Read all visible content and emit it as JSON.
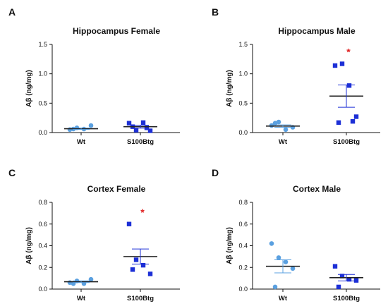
{
  "chart_data": [
    {
      "type": "scatter",
      "panel": "A",
      "title": "Hippocampus Female",
      "ylabel": "Aβ (ng/mg)",
      "ylim": [
        0,
        1.5
      ],
      "yticks": [
        "0.0",
        "0.5",
        "1.0",
        "1.5"
      ],
      "categories": [
        "Wt",
        "S100Btg"
      ],
      "series": [
        {
          "category": "Wt",
          "color": "#5aa0e0",
          "marker": "circle",
          "mean": 0.065,
          "sem": 0.013,
          "values": [
            0.05,
            0.08,
            0.06,
            0.12,
            0.06
          ]
        },
        {
          "category": "S100Btg",
          "color": "#1c2fd6",
          "marker": "square",
          "mean": 0.1,
          "sem": 0.025,
          "values": [
            0.16,
            0.04,
            0.17,
            0.03,
            0.1,
            0.08
          ]
        }
      ],
      "annotation": ""
    },
    {
      "type": "scatter",
      "panel": "B",
      "title": "Hippocampus Male",
      "ylabel": "Aβ (ng/mg)",
      "ylim": [
        0,
        1.5
      ],
      "yticks": [
        "0.0",
        "0.5",
        "1.0",
        "1.5"
      ],
      "categories": [
        "Wt",
        "S100Btg"
      ],
      "series": [
        {
          "category": "Wt",
          "color": "#5aa0e0",
          "marker": "circle",
          "mean": 0.11,
          "sem": 0.02,
          "values": [
            0.12,
            0.18,
            0.05,
            0.09,
            0.16
          ]
        },
        {
          "category": "S100Btg",
          "color": "#1c2fd6",
          "marker": "square",
          "mean": 0.62,
          "sem": 0.19,
          "values": [
            1.14,
            1.17,
            0.8,
            0.27,
            0.17,
            0.19
          ]
        }
      ],
      "annotation": "*"
    },
    {
      "type": "scatter",
      "panel": "C",
      "title": "Cortex Female",
      "ylabel": "Aβ (ng/mg)",
      "ylim": [
        0,
        0.8
      ],
      "yticks": [
        "0.0",
        "0.2",
        "0.4",
        "0.6",
        "0.8"
      ],
      "categories": [
        "Wt",
        "S100Btg"
      ],
      "series": [
        {
          "category": "Wt",
          "color": "#5aa0e0",
          "marker": "circle",
          "mean": 0.068,
          "sem": 0.008,
          "values": [
            0.06,
            0.075,
            0.05,
            0.09,
            0.05
          ]
        },
        {
          "category": "S100Btg",
          "color": "#1c2fd6",
          "marker": "square",
          "mean": 0.3,
          "sem": 0.07,
          "values": [
            0.6,
            0.27,
            0.22,
            0.14,
            0.18
          ]
        }
      ],
      "annotation": "*"
    },
    {
      "type": "scatter",
      "panel": "D",
      "title": "Cortex Male",
      "ylabel": "Aβ (ng/mg)",
      "ylim": [
        0,
        0.8
      ],
      "yticks": [
        "0.0",
        "0.2",
        "0.4",
        "0.6",
        "0.8"
      ],
      "categories": [
        "Wt",
        "S100Btg"
      ],
      "series": [
        {
          "category": "Wt",
          "color": "#5aa0e0",
          "marker": "circle",
          "mean": 0.21,
          "sem": 0.06,
          "values": [
            0.42,
            0.29,
            0.25,
            0.19,
            0.02
          ]
        },
        {
          "category": "S100Btg",
          "color": "#1c2fd6",
          "marker": "square",
          "mean": 0.105,
          "sem": 0.03,
          "values": [
            0.21,
            0.12,
            0.09,
            0.08,
            0.02
          ]
        }
      ],
      "annotation": ""
    }
  ]
}
